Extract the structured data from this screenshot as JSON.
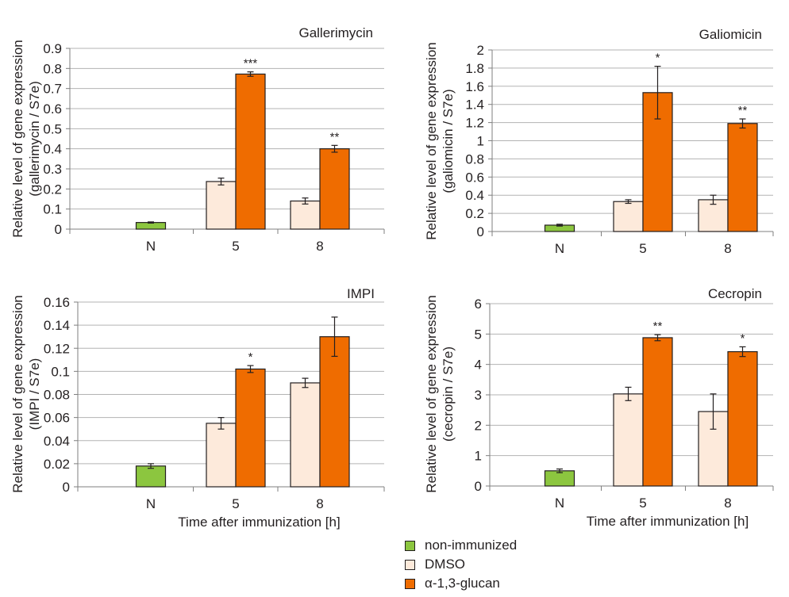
{
  "colors": {
    "non_immunized": "#8cc63f",
    "dmso": "#fdeadb",
    "glucan": "#ef6c00"
  },
  "legend": [
    "non-immunized",
    "DMSO",
    "α-1,3-glucan"
  ],
  "chart_data": [
    {
      "type": "bar",
      "title": "Gallerimycin",
      "ylabel": [
        "Relative level of gene expression",
        "(gallerimycin / S7e)"
      ],
      "xlabel": "",
      "categories": [
        "N",
        "5",
        "8"
      ],
      "ylim": [
        0,
        0.9
      ],
      "yticks": [
        "0",
        "0.1",
        "0.2",
        "0.3",
        "0.4",
        "0.5",
        "0.6",
        "0.7",
        "0.8",
        "0.9"
      ],
      "series": [
        {
          "name": "non-immunized",
          "values": [
            0.033,
            null,
            null
          ],
          "errors": [
            0.003,
            null,
            null
          ]
        },
        {
          "name": "DMSO",
          "values": [
            null,
            0.237,
            0.14
          ],
          "errors": [
            null,
            0.017,
            0.015
          ]
        },
        {
          "name": "α-1,3-glucan",
          "values": [
            null,
            0.772,
            0.4
          ],
          "errors": [
            null,
            0.011,
            0.017
          ]
        }
      ],
      "annotations": [
        {
          "category": "5",
          "series": "α-1,3-glucan",
          "text": "***"
        },
        {
          "category": "8",
          "series": "α-1,3-glucan",
          "text": "**"
        }
      ]
    },
    {
      "type": "bar",
      "title": "Galiomicin",
      "ylabel": [
        "Relative level of gene expression",
        "(galiomicin / S7e)"
      ],
      "xlabel": "",
      "categories": [
        "N",
        "5",
        "8"
      ],
      "ylim": [
        0,
        2
      ],
      "yticks": [
        "0",
        "0.2",
        "0.4",
        "0.6",
        "0.8",
        "1",
        "1.2",
        "1.4",
        "1.6",
        "1.8",
        "2"
      ],
      "series": [
        {
          "name": "non-immunized",
          "values": [
            0.07,
            null,
            null
          ],
          "errors": [
            0.01,
            null,
            null
          ]
        },
        {
          "name": "DMSO",
          "values": [
            null,
            0.33,
            0.35
          ],
          "errors": [
            null,
            0.02,
            0.05
          ]
        },
        {
          "name": "α-1,3-glucan",
          "values": [
            null,
            1.53,
            1.19
          ],
          "errors": [
            null,
            0.29,
            0.05
          ]
        }
      ],
      "annotations": [
        {
          "category": "5",
          "series": "α-1,3-glucan",
          "text": "*"
        },
        {
          "category": "8",
          "series": "α-1,3-glucan",
          "text": "**"
        }
      ]
    },
    {
      "type": "bar",
      "title": "IMPI",
      "ylabel": [
        "Relative level of gene expression",
        "(IMPI / S7e)"
      ],
      "xlabel": "Time after immunization [h]",
      "categories": [
        "N",
        "5",
        "8"
      ],
      "ylim": [
        0,
        0.16
      ],
      "yticks": [
        "0",
        "0.02",
        "0.04",
        "0.06",
        "0.08",
        "0.1",
        "0.12",
        "0.14",
        "0.16"
      ],
      "series": [
        {
          "name": "non-immunized",
          "values": [
            0.018,
            null,
            null
          ],
          "errors": [
            0.002,
            null,
            null
          ]
        },
        {
          "name": "DMSO",
          "values": [
            null,
            0.055,
            0.09
          ],
          "errors": [
            null,
            0.005,
            0.004
          ]
        },
        {
          "name": "α-1,3-glucan",
          "values": [
            null,
            0.102,
            0.13
          ],
          "errors": [
            null,
            0.003,
            0.017
          ]
        }
      ],
      "annotations": [
        {
          "category": "5",
          "series": "α-1,3-glucan",
          "text": "*"
        }
      ]
    },
    {
      "type": "bar",
      "title": "Cecropin",
      "ylabel": [
        "Relative level of gene expression",
        "(cecropin / S7e)"
      ],
      "xlabel": "Time after immunization [h]",
      "categories": [
        "N",
        "5",
        "8"
      ],
      "ylim": [
        0,
        6
      ],
      "yticks": [
        "0",
        "1",
        "2",
        "3",
        "4",
        "5",
        "6"
      ],
      "series": [
        {
          "name": "non-immunized",
          "values": [
            0.5,
            null,
            null
          ],
          "errors": [
            0.06,
            null,
            null
          ]
        },
        {
          "name": "DMSO",
          "values": [
            null,
            3.03,
            2.45
          ],
          "errors": [
            null,
            0.22,
            0.58
          ]
        },
        {
          "name": "α-1,3-glucan",
          "values": [
            null,
            4.88,
            4.42
          ],
          "errors": [
            null,
            0.1,
            0.16
          ]
        }
      ],
      "annotations": [
        {
          "category": "5",
          "series": "α-1,3-glucan",
          "text": "**"
        },
        {
          "category": "8",
          "series": "α-1,3-glucan",
          "text": "*"
        }
      ]
    }
  ]
}
